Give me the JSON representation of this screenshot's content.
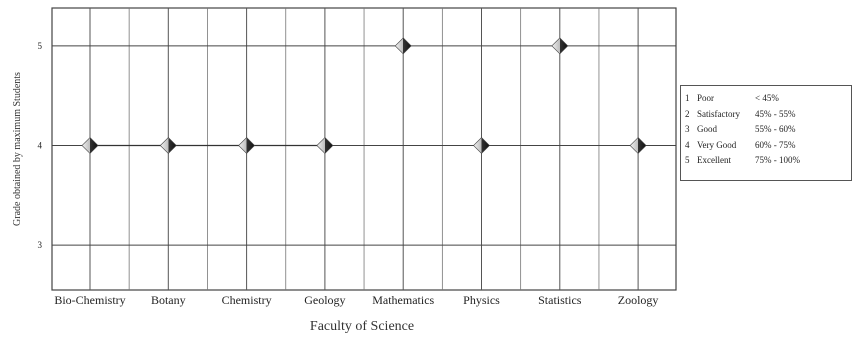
{
  "chart_data": {
    "type": "line",
    "xlabel": "Faculty of Science",
    "ylabel": "Grade obtained by maximum Students",
    "categories": [
      "Bio-Chemistry",
      "Botany",
      "Chemistry",
      "Geology",
      "Mathematics",
      "Physics",
      "Statistics",
      "Zoology"
    ],
    "values": [
      4,
      4,
      4,
      4,
      5,
      4,
      5,
      4
    ],
    "y_ticks": [
      "3",
      "4",
      "5"
    ],
    "ylim": [
      2.55,
      5.38
    ],
    "grid": true,
    "legend_position": "right",
    "legend": [
      {
        "num": "1",
        "name": "Poor",
        "range": "< 45%"
      },
      {
        "num": "2",
        "name": "Satisfactory",
        "range": "45% - 55%"
      },
      {
        "num": "3",
        "name": "Good",
        "range": "55% - 60%"
      },
      {
        "num": "4",
        "name": "Very Good",
        "range": "60% - 75%"
      },
      {
        "num": "5",
        "name": "Excellent",
        "range": "75% - 100%"
      }
    ]
  }
}
